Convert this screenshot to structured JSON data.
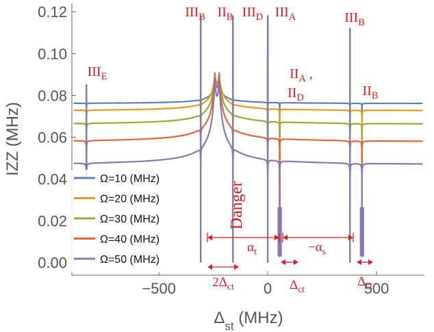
{
  "chart_data": {
    "type": "line",
    "xlabel": "Δst (MHz)",
    "ylabel": "IZZ (MHz)",
    "xlim": [
      -900,
      720
    ],
    "ylim": [
      -0.006,
      0.124
    ],
    "x_ticks": [
      {
        "value": -500,
        "label": "−500"
      },
      {
        "value": 0,
        "label": "0"
      },
      {
        "value": 500,
        "label": "500"
      }
    ],
    "y_ticks": [
      {
        "value": 0.0,
        "label": "0.00"
      },
      {
        "value": 0.02,
        "label": "0.02"
      },
      {
        "value": 0.04,
        "label": "0.04"
      },
      {
        "value": 0.06,
        "label": "0.06"
      },
      {
        "value": 0.08,
        "label": "0.08"
      },
      {
        "value": 0.1,
        "label": "0.10"
      },
      {
        "value": 0.12,
        "label": "0.12"
      }
    ],
    "grid": false,
    "legend_position": "lower-left",
    "series": [
      {
        "name": "Ω=10 (MHz)",
        "color": "#5e81b5",
        "baseline": 0.076,
        "dip_depth": 0.008
      },
      {
        "name": "Ω=20 (MHz)",
        "color": "#e19c24",
        "baseline": 0.0725,
        "dip_depth": 0.014
      },
      {
        "name": "Ω=30 (MHz)",
        "color": "#8fb032",
        "baseline": 0.066,
        "dip_depth": 0.02
      },
      {
        "name": "Ω=40 (MHz)",
        "color": "#eb6235",
        "baseline": 0.0575,
        "dip_depth": 0.027
      },
      {
        "name": "Ω=50 (MHz)",
        "color": "#8778b3",
        "baseline": 0.0465,
        "dip_depth": 0.034
      }
    ],
    "resonances": [
      {
        "x": -833,
        "kind": "spike",
        "top": 0.085,
        "bottom": 0.043
      },
      {
        "x": -308,
        "kind": "spike",
        "top": 0.118,
        "bottom": 0.0
      },
      {
        "x": -243,
        "kind": "peak",
        "top": 0.118
      },
      {
        "x": -223,
        "kind": "peak",
        "top": 0.118
      },
      {
        "x": -160,
        "kind": "spike",
        "top": 0.118,
        "bottom": 0.0
      },
      {
        "x": 0,
        "kind": "spike",
        "top": 0.118,
        "bottom": 0.0
      },
      {
        "x": 55,
        "kind": "dip",
        "bottom": 0.003
      },
      {
        "x": 378,
        "kind": "spike",
        "top": 0.112,
        "bottom": 0.0
      },
      {
        "x": 433,
        "kind": "dip",
        "bottom": 0.003
      }
    ],
    "annotations": {
      "III_E": {
        "main": "III",
        "sub": "E"
      },
      "III_B_left": {
        "main": "III",
        "sub": "B"
      },
      "II_B_left": {
        "main": "II",
        "sub": "B"
      },
      "III_D": {
        "main": "III",
        "sub": "D"
      },
      "III_A": {
        "main": "III",
        "sub": "A"
      },
      "III_B_right": {
        "main": "III",
        "sub": "B"
      },
      "II_A": {
        "main": "II",
        "sub": "A",
        "suffix": ","
      },
      "II_D": {
        "main": "II",
        "sub": "D"
      },
      "II_B_right": {
        "main": "II",
        "sub": "B"
      },
      "danger": "Danger",
      "alpha_t": {
        "main": "α",
        "sub": "t"
      },
      "minus_alpha_s": {
        "main": "−α",
        "sub": "s"
      },
      "two_delta_ct": {
        "main": "2Δ",
        "sub": "ct"
      },
      "delta_ct_mid": {
        "main": "Δ",
        "sub": "ct"
      },
      "delta_ct_right": {
        "main": "Δ",
        "sub": "ct"
      }
    }
  }
}
